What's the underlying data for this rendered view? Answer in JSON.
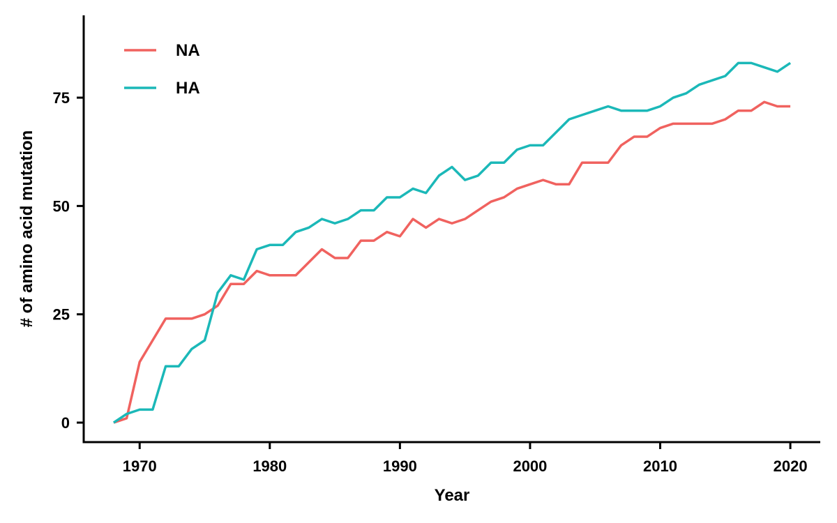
{
  "chart_data": {
    "type": "line",
    "title": "",
    "xlabel": "Year",
    "ylabel": "# of amino acid mutation",
    "xlim": [
      1965.7,
      2022.3
    ],
    "ylim": [
      -4.5,
      94
    ],
    "xticks": [
      1970,
      1980,
      1990,
      2000,
      2010,
      2020
    ],
    "yticks": [
      0,
      25,
      50,
      75
    ],
    "grid": false,
    "legend_position": "top-left",
    "x": [
      1968,
      1969,
      1970,
      1971,
      1972,
      1973,
      1974,
      1975,
      1976,
      1977,
      1978,
      1979,
      1980,
      1981,
      1982,
      1983,
      1984,
      1985,
      1986,
      1987,
      1988,
      1989,
      1990,
      1991,
      1992,
      1993,
      1994,
      1995,
      1996,
      1997,
      1998,
      1999,
      2000,
      2001,
      2002,
      2003,
      2004,
      2005,
      2006,
      2007,
      2008,
      2009,
      2010,
      2011,
      2012,
      2013,
      2014,
      2015,
      2016,
      2017,
      2018,
      2019,
      2020
    ],
    "series": [
      {
        "name": "NA",
        "color": "#F0625F",
        "values": [
          0,
          1,
          14,
          19,
          24,
          24,
          24,
          25,
          27,
          32,
          32,
          35,
          34,
          34,
          34,
          37,
          40,
          38,
          38,
          42,
          42,
          44,
          43,
          47,
          45,
          47,
          46,
          47,
          49,
          51,
          52,
          54,
          55,
          56,
          55,
          55,
          60,
          60,
          60,
          64,
          66,
          66,
          68,
          69,
          69,
          69,
          69,
          70,
          72,
          72,
          74,
          73,
          73
        ]
      },
      {
        "name": "HA",
        "color": "#1BB8B8",
        "values": [
          0,
          2,
          3,
          3,
          13,
          13,
          17,
          19,
          30,
          34,
          33,
          40,
          41,
          41,
          44,
          45,
          47,
          46,
          47,
          49,
          49,
          52,
          52,
          54,
          53,
          57,
          59,
          56,
          57,
          60,
          60,
          63,
          64,
          64,
          67,
          70,
          71,
          72,
          73,
          72,
          72,
          72,
          73,
          75,
          76,
          78,
          79,
          80,
          83,
          83,
          82,
          81,
          83
        ]
      }
    ]
  }
}
